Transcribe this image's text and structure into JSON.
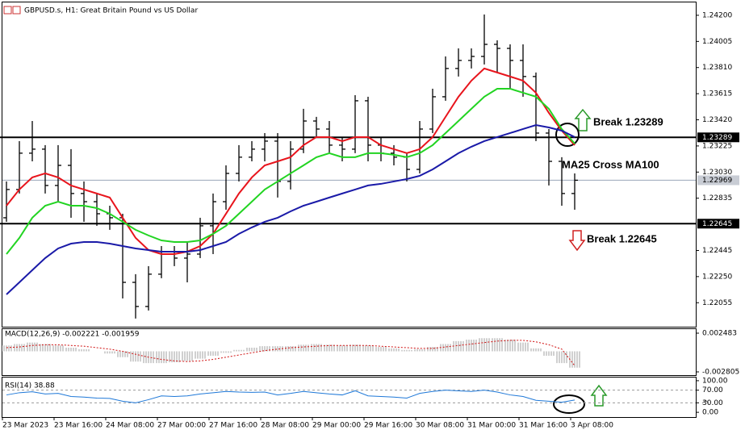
{
  "chart_data": [
    {
      "type": "candlestick",
      "title": "GBPUSD.s, H1:  Great Britain Pound vs US Dollar",
      "open": [
        1.22689,
        1.229,
        1.23171,
        1.23201,
        1.2293,
        1.2308,
        1.2287,
        1.22809,
        1.22719,
        1.22689,
        1.22207,
        1.22027,
        1.22268,
        1.22418,
        1.22388,
        1.22418,
        1.22629,
        1.22809,
        1.2302,
        1.23141,
        1.23201,
        1.23261,
        1.2296,
        1.23201,
        1.23411,
        1.23351,
        1.23231,
        1.23201,
        1.23562,
        1.23231,
        1.23171,
        1.23141,
        1.2305,
        1.23351,
        1.23592,
        1.23803,
        1.23863,
        1.23893,
        1.23983,
        1.23953,
        1.23863,
        1.23743,
        1.23321,
        1.2311,
        1.2287
      ],
      "high": [
        1.2296,
        1.23261,
        1.23411,
        1.23231,
        1.23231,
        1.23201,
        1.2296,
        1.2287,
        1.22779,
        1.22719,
        1.22268,
        1.22328,
        1.22478,
        1.22478,
        1.22508,
        1.22689,
        1.2287,
        1.2308,
        1.23231,
        1.23261,
        1.23321,
        1.23321,
        1.23261,
        1.23502,
        1.23442,
        1.23411,
        1.23291,
        1.23604,
        1.23592,
        1.23291,
        1.23231,
        1.23171,
        1.23411,
        1.23652,
        1.23893,
        1.23953,
        1.23953,
        1.24206,
        1.24013,
        1.23983,
        1.23983,
        1.23773,
        1.23351,
        1.23141,
        1.2302
      ],
      "low": [
        1.22659,
        1.2287,
        1.2311,
        1.2287,
        1.22809,
        1.22689,
        1.22659,
        1.22629,
        1.22599,
        1.22087,
        1.21937,
        1.21997,
        1.22238,
        1.22328,
        1.22207,
        1.22388,
        1.22418,
        1.22749,
        1.2296,
        1.2311,
        1.2311,
        1.2284,
        1.229,
        1.23171,
        1.23291,
        1.23171,
        1.2311,
        1.23171,
        1.2311,
        1.2311,
        1.2308,
        1.2296,
        1.2302,
        1.23321,
        1.23562,
        1.23743,
        1.23803,
        1.23833,
        1.23773,
        1.23652,
        1.23592,
        1.23261,
        1.2293,
        1.22779,
        1.22749
      ],
      "close": [
        1.229,
        1.23171,
        1.23201,
        1.2293,
        1.2308,
        1.2287,
        1.22809,
        1.22719,
        1.22689,
        1.22207,
        1.22027,
        1.22268,
        1.22418,
        1.22388,
        1.22418,
        1.22629,
        1.22809,
        1.2302,
        1.23141,
        1.23201,
        1.23261,
        1.2296,
        1.23201,
        1.23411,
        1.23351,
        1.23231,
        1.23201,
        1.23562,
        1.23231,
        1.23171,
        1.23141,
        1.2305,
        1.23351,
        1.23592,
        1.23803,
        1.23863,
        1.23893,
        1.23983,
        1.23953,
        1.23863,
        1.23743,
        1.23321,
        1.2311,
        1.2287,
        1.22969
      ],
      "color": "#000000",
      "series": [
        {
          "color": "#e8141c",
          "values": [
            1.22779,
            1.229,
            1.2299,
            1.2302,
            1.2299,
            1.2293,
            1.229,
            1.2287,
            1.2284,
            1.22689,
            1.22539,
            1.22448,
            1.22418,
            1.22418,
            1.22436,
            1.22478,
            1.22569,
            1.22719,
            1.2287,
            1.2299,
            1.2308,
            1.2311,
            1.23141,
            1.23231,
            1.23291,
            1.23291,
            1.23261,
            1.23291,
            1.23291,
            1.23231,
            1.23201,
            1.23171,
            1.23201,
            1.23291,
            1.23442,
            1.23592,
            1.23712,
            1.23803,
            1.23773,
            1.23743,
            1.23712,
            1.23622,
            1.23472,
            1.23339,
            1.23231
          ]
        },
        {
          "color": "#22d422",
          "values": [
            1.22418,
            1.22539,
            1.22689,
            1.22779,
            1.22809,
            1.22779,
            1.22779,
            1.22761,
            1.22719,
            1.22659,
            1.22599,
            1.22557,
            1.2252,
            1.22508,
            1.22508,
            1.2252,
            1.22569,
            1.22629,
            1.22719,
            1.22809,
            1.229,
            1.2296,
            1.2302,
            1.2308,
            1.23141,
            1.23171,
            1.23141,
            1.23141,
            1.23171,
            1.23171,
            1.23159,
            1.23141,
            1.23171,
            1.23231,
            1.23321,
            1.23411,
            1.23502,
            1.23592,
            1.23652,
            1.23652,
            1.23622,
            1.23592,
            1.23502,
            1.23351,
            1.23243
          ]
        },
        {
          "color": "#1a1aa8",
          "values": [
            1.22117,
            1.22207,
            1.22298,
            1.22388,
            1.2246,
            1.22496,
            1.22508,
            1.22508,
            1.22496,
            1.22478,
            1.2246,
            1.22448,
            1.22436,
            1.22436,
            1.22436,
            1.22448,
            1.22478,
            1.22508,
            1.22569,
            1.22617,
            1.22659,
            1.22689,
            1.22737,
            1.22779,
            1.22809,
            1.2284,
            1.2287,
            1.229,
            1.2293,
            1.22942,
            1.2296,
            1.22978,
            1.23002,
            1.2305,
            1.2311,
            1.23171,
            1.23219,
            1.23261,
            1.23291,
            1.23321,
            1.23351,
            1.23381,
            1.23363,
            1.23339,
            1.23291
          ]
        }
      ],
      "levels": [
        1.23289,
        1.22645
      ],
      "last_price": 1.22969,
      "annotations": [
        "Break 1.23289",
        "MA25 Cross MA100",
        "Break 1.22645"
      ],
      "ylim": [
        1.21876,
        1.24296
      ],
      "yticks": [
        {
          "value": 1.242,
          "label": "1.24200"
        },
        1.24005,
        {
          "value": 1.2381,
          "label": "1.23810"
        },
        1.23615,
        {
          "value": 1.2342,
          "label": "1.23420"
        },
        1.23225,
        {
          "value": 1.2303,
          "label": "1.23030"
        },
        1.22835,
        1.22445,
        {
          "value": 1.2225,
          "label": "1.22250"
        },
        1.22055
      ],
      "xticks": [
        {
          "value": 0,
          "label": "23 Mar 2023"
        },
        {
          "value": 4,
          "label": "23 Mar 16:00"
        },
        {
          "value": 8,
          "label": "24 Mar 08:00"
        },
        {
          "value": 12,
          "label": "27 Mar 00:00"
        },
        {
          "value": 16,
          "label": "27 Mar 16:00"
        },
        {
          "value": 20,
          "label": "28 Mar 08:00"
        },
        {
          "value": 24,
          "label": "29 Mar 00:00"
        },
        {
          "value": 28,
          "label": "29 Mar 16:00"
        },
        {
          "value": 32,
          "label": "30 Mar 08:00"
        },
        {
          "value": 36,
          "label": "31 Mar 00:00"
        },
        {
          "value": 40,
          "label": "31 Mar 16:00"
        },
        {
          "value": 44,
          "label": "3 Apr 08:00"
        }
      ]
    },
    {
      "type": "macd",
      "title": "MACD(12,26,9) -0.002221 -0.001959",
      "histogram": [
        0.0008,
        0.001,
        0.0012,
        0.001,
        0.0008,
        0.0005,
        0.0003,
        0.0,
        -0.0003,
        -0.0008,
        -0.0014,
        -0.0016,
        -0.0016,
        -0.0015,
        -0.0013,
        -0.001,
        -0.0006,
        -0.0002,
        0.0002,
        0.0005,
        0.0007,
        0.0007,
        0.0007,
        0.0009,
        0.001,
        0.0009,
        0.0008,
        0.0009,
        0.0008,
        0.0006,
        0.0004,
        0.0002,
        0.0003,
        0.0006,
        0.001,
        0.0014,
        0.0016,
        0.0018,
        0.0018,
        0.0016,
        0.0012,
        0.0004,
        -0.0006,
        -0.0016,
        -0.002221
      ],
      "histogram_color": "#a0a0a0",
      "signal": [
        0.0005,
        0.0006,
        0.0008,
        0.0009,
        0.0009,
        0.0008,
        0.0007,
        0.0005,
        0.0003,
        0.0,
        -0.0004,
        -0.0008,
        -0.0011,
        -0.0013,
        -0.0014,
        -0.0013,
        -0.0011,
        -0.0008,
        -0.0005,
        -0.0002,
        0.0001,
        0.0003,
        0.0005,
        0.0006,
        0.0007,
        0.0008,
        0.0008,
        0.0008,
        0.0008,
        0.0007,
        0.0006,
        0.0005,
        0.0004,
        0.0004,
        0.0006,
        0.0008,
        0.001,
        0.0012,
        0.0014,
        0.0015,
        0.0015,
        0.0013,
        0.0009,
        0.0003,
        -0.001959
      ],
      "signal_color": "#d01010",
      "ylim": [
        -0.003245,
        0.003033
      ],
      "yticks": [
        0.002483,
        -0.002805
      ]
    },
    {
      "type": "rsi",
      "title": "RSI(14) 38.88",
      "values": [
        55,
        62,
        65,
        58,
        60,
        50,
        48,
        45,
        44,
        35,
        30,
        40,
        52,
        50,
        52,
        58,
        62,
        66,
        64,
        63,
        64,
        55,
        60,
        66,
        62,
        58,
        55,
        68,
        52,
        50,
        48,
        45,
        60,
        66,
        70,
        68,
        66,
        70,
        64,
        55,
        50,
        38,
        35,
        32,
        38.88
      ],
      "color": "#1e78d8",
      "levels": [
        70,
        30
      ],
      "ylim": [
        -15,
        110
      ],
      "yticks": [
        {
          "value": 100,
          "label": "100.00"
        },
        {
          "value": 70,
          "label": "70.00"
        },
        {
          "value": 30,
          "label": "30.00"
        },
        {
          "value": 0,
          "label": "0.00"
        }
      ]
    }
  ]
}
